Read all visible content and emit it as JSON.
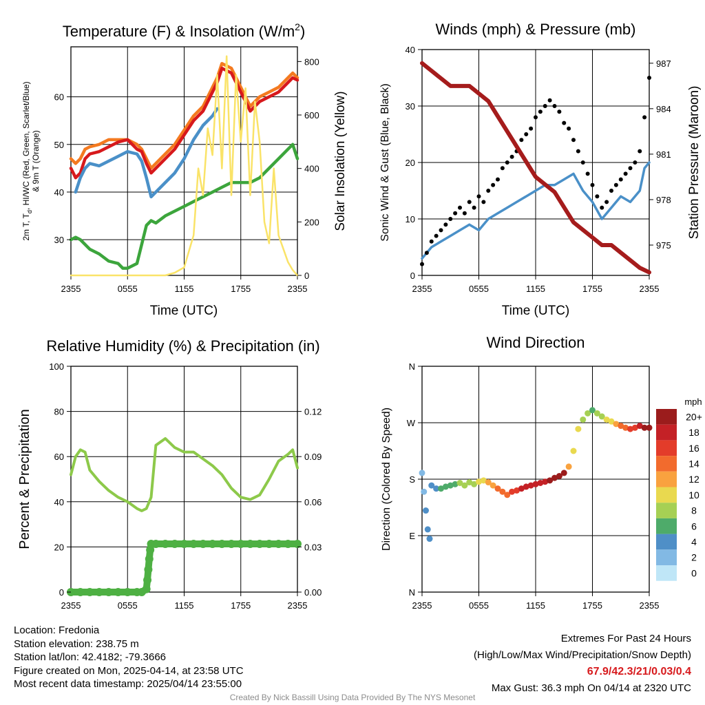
{
  "chart_data": [
    {
      "id": "temp",
      "type": "line",
      "title": "Temperature (F) & Insolation (W/m²)",
      "title_parts": [
        "Temperature (F) & Insolation (W/m",
        "2",
        ")"
      ],
      "xlabel": "Time (UTC)",
      "ylabel": "2m T, Td, HI/WC (Red, Green, Scarlet/Blue) & 9m T (Orange)",
      "ylabel_lines": [
        "2m T, T",
        "d",
        ", HI/WC (Red, Green, Scarlet/Blue)",
        "& 9m T (Orange)"
      ],
      "y2label": "Solar Insolation (Yellow)",
      "x_ticks": [
        "2355",
        "0555",
        "1155",
        "1755",
        "2355"
      ],
      "y_ticks": [
        30,
        40,
        50,
        60
      ],
      "y2_ticks": [
        0,
        200,
        400,
        600,
        800
      ],
      "ylim": [
        22.5,
        70.5
      ],
      "y2lim": [
        0,
        855
      ],
      "xlim": [
        0,
        24
      ],
      "grid": true,
      "series": [
        {
          "color": "#f47a20",
          "axis": "y",
          "x": [
            0,
            0.5,
            1,
            1.5,
            2,
            3,
            4,
            5,
            6,
            7,
            7.5,
            8,
            8.5,
            9,
            10,
            11,
            12,
            13,
            14,
            15,
            15.5,
            16,
            17,
            18,
            19,
            20,
            21,
            22,
            23,
            23.5,
            24
          ],
          "y": [
            47,
            46,
            47,
            49,
            49.5,
            50,
            51,
            51,
            51,
            50,
            49,
            47,
            45,
            46,
            48,
            50,
            53,
            56,
            58,
            62,
            64,
            67,
            66,
            62,
            58,
            60,
            61,
            62,
            64,
            65,
            64
          ]
        },
        {
          "color": "#d7191c",
          "axis": "y",
          "x": [
            0,
            0.5,
            1,
            1.5,
            2,
            3,
            4,
            5,
            6,
            7,
            7.5,
            8,
            8.5,
            9,
            10,
            11,
            12,
            13,
            14,
            15,
            15.5,
            16,
            17,
            18,
            19,
            20,
            21,
            22,
            23,
            23.5,
            24
          ],
          "y": [
            45,
            43,
            44,
            47,
            48,
            48.5,
            49.5,
            50.5,
            51,
            49,
            48.5,
            46,
            44,
            45,
            47,
            49,
            52,
            55,
            57,
            61,
            63,
            66,
            65,
            61,
            57,
            59,
            60,
            61,
            63,
            64,
            63.5
          ]
        },
        {
          "color": "#4a90c8",
          "axis": "y",
          "x": [
            0.5,
            1,
            1.5,
            2,
            3,
            4,
            5,
            6,
            7,
            7.5,
            8,
            8.5,
            9,
            10,
            11,
            12,
            13,
            14,
            15,
            15.5
          ],
          "y": [
            40,
            43,
            45,
            46,
            45.5,
            46.5,
            47.5,
            48.5,
            48,
            46.5,
            43,
            39,
            40,
            42,
            44,
            47,
            51,
            54,
            56,
            57.5
          ]
        },
        {
          "color": "#3ca53c",
          "axis": "y",
          "x": [
            0,
            0.5,
            1,
            2,
            3,
            4,
            5,
            5.5,
            6,
            7,
            7.5,
            8,
            8.5,
            9,
            10,
            11,
            12,
            13,
            14,
            15,
            16,
            17,
            18,
            19,
            20,
            21,
            22,
            23,
            23.5,
            24
          ],
          "y": [
            30,
            30.5,
            30,
            28,
            27,
            25.5,
            25,
            24,
            24,
            25,
            29,
            33,
            34,
            33.5,
            35,
            36,
            37,
            38,
            39,
            40,
            41,
            42,
            42,
            42,
            43,
            45,
            47,
            49,
            50,
            47
          ]
        },
        {
          "color": "#fae368",
          "axis": "y2",
          "x": [
            0,
            1,
            2,
            3,
            4,
            5,
            6,
            7,
            8,
            9,
            10,
            11,
            12,
            13,
            13.5,
            14,
            14.5,
            15,
            15.5,
            16,
            16.5,
            17,
            17.5,
            18,
            18.5,
            19,
            19.5,
            20,
            20.5,
            21,
            21.5,
            22,
            22.5,
            23,
            23.5,
            24
          ],
          "y": [
            0,
            0,
            0,
            0,
            0,
            0,
            0,
            0,
            0,
            0,
            0,
            10,
            30,
            150,
            400,
            300,
            550,
            450,
            750,
            400,
            820,
            300,
            750,
            500,
            700,
            300,
            650,
            500,
            200,
            120,
            400,
            150,
            100,
            50,
            20,
            0
          ]
        }
      ]
    },
    {
      "id": "wind",
      "type": "line",
      "title": "Winds (mph) & Pressure (mb)",
      "xlabel": "Time (UTC)",
      "ylabel": "Sonic Wind & Gust (Blue, Black)",
      "y2label": "Station Pressure (Maroon)",
      "x_ticks": [
        "2355",
        "0555",
        "1155",
        "1755",
        "2355"
      ],
      "y_ticks": [
        0,
        10,
        20,
        30,
        40
      ],
      "y2_ticks": [
        975,
        978,
        981,
        984,
        987
      ],
      "ylim": [
        0,
        40
      ],
      "y2lim": [
        973.0,
        987.9
      ],
      "xlim": [
        0,
        24
      ],
      "grid": true,
      "series": [
        {
          "color": "#4a90c8",
          "axis": "y",
          "type": "line",
          "x": [
            0,
            1,
            2,
            3,
            4,
            5,
            6,
            7,
            8,
            9,
            10,
            11,
            12,
            13,
            14,
            15,
            16,
            17,
            18,
            19,
            20,
            21,
            22,
            23,
            23.5,
            24
          ],
          "y": [
            3,
            5,
            6,
            7,
            8,
            9,
            8,
            10,
            11,
            12,
            13,
            14,
            15,
            16,
            16,
            17,
            18,
            15,
            13,
            10,
            12,
            14,
            13,
            15,
            19,
            20
          ]
        },
        {
          "color": "#000000",
          "axis": "y",
          "type": "scatter",
          "x": [
            0,
            0.5,
            1,
            1.5,
            2,
            2.5,
            3,
            3.5,
            4,
            4.5,
            5,
            5.5,
            6,
            6.5,
            7,
            7.5,
            8,
            8.5,
            9,
            9.5,
            10,
            10.5,
            11,
            11.5,
            12,
            12.5,
            13,
            13.5,
            14,
            14.5,
            15,
            15.5,
            16,
            16.5,
            17,
            17.5,
            18,
            18.5,
            19,
            19.5,
            20,
            20.5,
            21,
            21.5,
            22,
            22.5,
            23,
            23.5,
            24
          ],
          "y": [
            2,
            4,
            6,
            7,
            8,
            9,
            10,
            11,
            12,
            11,
            13,
            12,
            14,
            13,
            15,
            16,
            17,
            19,
            20,
            21,
            22,
            24,
            25,
            26,
            28,
            29,
            30,
            31,
            30,
            29,
            27,
            26,
            24,
            22,
            20,
            18,
            16,
            14,
            12,
            13,
            15,
            16,
            17,
            18,
            19,
            20,
            22,
            28,
            35
          ]
        },
        {
          "color": "#a51c1c",
          "axis": "y2",
          "type": "line",
          "x": [
            0,
            1,
            2,
            3,
            4,
            5,
            6,
            7,
            8,
            9,
            10,
            11,
            12,
            13,
            14,
            15,
            16,
            17,
            18,
            19,
            20,
            21,
            22,
            23,
            24
          ],
          "y": [
            987,
            986.5,
            986,
            985.5,
            985.5,
            985.5,
            985,
            984.5,
            983.5,
            982.5,
            981.5,
            980.5,
            979.5,
            979,
            978.5,
            977.5,
            976.5,
            976,
            975.5,
            975,
            975,
            974.5,
            974,
            973.5,
            973.2
          ]
        }
      ]
    },
    {
      "id": "rh",
      "type": "line",
      "title": "Relative Humidity (%) & Precipitation (in)",
      "ylabel": "Percent & Precipitation",
      "x_ticks": [
        "2355",
        "0555",
        "1155",
        "1755",
        "2355"
      ],
      "y_ticks": [
        0,
        20,
        40,
        60,
        80,
        100
      ],
      "y2_ticks": [
        "0.00",
        "0.03",
        "0.06",
        "0.09",
        "0.12"
      ],
      "ylim": [
        0,
        100
      ],
      "y2lim": [
        0,
        0.15
      ],
      "xlim": [
        0,
        24
      ],
      "grid": true,
      "series": [
        {
          "color": "#8dc94a",
          "axis": "y",
          "type": "line",
          "x": [
            0,
            0.5,
            1,
            1.5,
            2,
            3,
            4,
            5,
            6,
            7,
            7.5,
            8,
            8.5,
            9,
            10,
            11,
            12,
            13,
            14,
            15,
            16,
            17,
            18,
            19,
            20,
            21,
            22,
            23,
            23.5,
            24
          ],
          "y": [
            52,
            60,
            63,
            62,
            54,
            49,
            45,
            42,
            40,
            37,
            36,
            37,
            42,
            65,
            68,
            64,
            62,
            62,
            59,
            56,
            52,
            46,
            42,
            41,
            43,
            50,
            58,
            61,
            63,
            55
          ]
        },
        {
          "color": "#4eb043",
          "axis": "y2",
          "type": "scatter",
          "x": [
            0,
            1,
            2,
            3,
            4,
            5,
            6,
            7,
            7.5,
            8,
            8.1,
            8.2,
            8.3,
            8.4,
            8.5,
            9,
            10,
            11,
            12,
            13,
            14,
            15,
            16,
            17,
            18,
            19,
            20,
            21,
            22,
            23,
            24
          ],
          "y": [
            0,
            0,
            0,
            0,
            0,
            0,
            0,
            0,
            0,
            0.002,
            0.008,
            0.015,
            0.022,
            0.028,
            0.032,
            0.032,
            0.032,
            0.032,
            0.032,
            0.032,
            0.032,
            0.032,
            0.032,
            0.032,
            0.032,
            0.032,
            0.032,
            0.032,
            0.032,
            0.032,
            0.032
          ]
        }
      ]
    },
    {
      "id": "wdir",
      "type": "scatter",
      "title": "Wind Direction",
      "ylabel": "Direction (Colored By Speed)",
      "x_ticks": [
        "2355",
        "0555",
        "1155",
        "1755",
        "2355"
      ],
      "y_tick_labels": [
        "N",
        "E",
        "S",
        "W",
        "N"
      ],
      "y_ticks": [
        0,
        90,
        180,
        270,
        360
      ],
      "ylim": [
        0,
        360
      ],
      "xlim": [
        0,
        24
      ],
      "grid": true,
      "legend_title": "mph",
      "legend_labels": [
        "20+",
        "18",
        "16",
        "14",
        "12",
        "10",
        "8",
        "6",
        "4",
        "2",
        "0"
      ],
      "legend_colors": [
        "#9b1c1c",
        "#c42126",
        "#e33c2a",
        "#f26b2d",
        "#f9a23f",
        "#e9d94f",
        "#a6d054",
        "#4eab6a",
        "#4f8fc7",
        "#82b9e4",
        "#bfe6f7"
      ],
      "points": {
        "x": [
          0,
          0.2,
          0.4,
          0.6,
          0.8,
          1,
          1.5,
          2,
          2.5,
          3,
          3.5,
          4,
          4.5,
          5,
          5.5,
          6,
          6.5,
          7,
          7.5,
          8,
          8.5,
          9,
          9.5,
          10,
          10.5,
          11,
          11.5,
          12,
          12.5,
          13,
          13.5,
          14,
          14.5,
          15,
          15.5,
          16,
          16.5,
          17,
          17.5,
          18,
          18.5,
          19,
          19.5,
          20,
          20.5,
          21,
          21.5,
          22,
          22.5,
          23,
          23.5,
          24
        ],
        "y": [
          190,
          160,
          130,
          100,
          85,
          170,
          165,
          165,
          168,
          170,
          172,
          174,
          170,
          175,
          172,
          176,
          178,
          175,
          170,
          165,
          160,
          155,
          160,
          162,
          165,
          168,
          170,
          172,
          174,
          176,
          178,
          182,
          185,
          190,
          200,
          225,
          260,
          275,
          285,
          290,
          285,
          280,
          275,
          272,
          268,
          265,
          262,
          260,
          262,
          265,
          262,
          262
        ],
        "speed": [
          2,
          2,
          3,
          3,
          4,
          4,
          4,
          5,
          5,
          6,
          6,
          7,
          7,
          8,
          8,
          9,
          10,
          11,
          12,
          13,
          13,
          14,
          15,
          16,
          17,
          17,
          18,
          18,
          18,
          18,
          19,
          19,
          20,
          20,
          12,
          10,
          10,
          8,
          7,
          6,
          7,
          8,
          9,
          10,
          12,
          13,
          14,
          16,
          16,
          18,
          19,
          20
        ]
      }
    }
  ],
  "footer": {
    "location": "Location: Fredonia",
    "elevation": "Station elevation: 238.75 m",
    "latlon": "Station lat/lon: 42.4182; -79.3666",
    "created": "Figure created on Mon, 2025-04-14, at 23:58 UTC",
    "recent": "Most recent data timestamp: 2025/04/14 23:55:00",
    "extremes_title": "Extremes For Past 24 Hours",
    "extremes_sub": "(High/Low/Max Wind/Precipitation/Snow Depth)",
    "extremes_vals": "67.9/42.3/21/0.03/0.4",
    "max_gust": "Max Gust: 36.3 mph On 04/14 at 2320 UTC",
    "credit": "Created By Nick Bassill Using Data Provided By The NYS Mesonet"
  }
}
